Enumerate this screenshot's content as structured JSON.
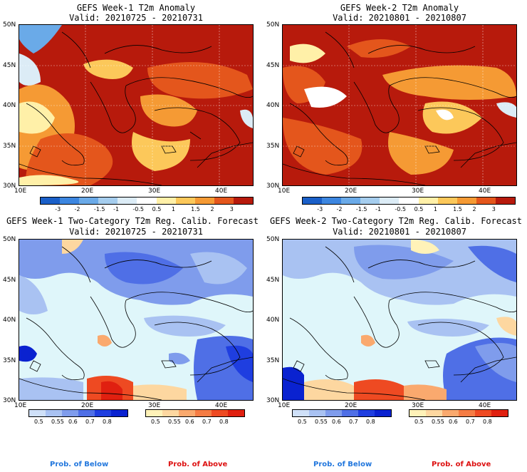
{
  "panels": {
    "tl": {
      "title": "GEFS Week-1 T2m Anomaly",
      "valid": "Valid: 20210725 - 20210731"
    },
    "tr": {
      "title": "GEFS Week-2 T2m Anomaly",
      "valid": "Valid: 20210801 - 20210807"
    },
    "bl": {
      "title": "GEFS Week-1 Two-Category T2m Reg. Calib. Forecast",
      "valid": "Valid: 20210725 - 20210731"
    },
    "br": {
      "title": "GEFS Week-2 Two-Category T2m Reg. Calib. Forecast",
      "valid": "Valid: 20210801 - 20210807"
    }
  },
  "axes": {
    "lat": [
      "50N",
      "45N",
      "40N",
      "35N",
      "30N"
    ],
    "lon": [
      "10E",
      "20E",
      "30E",
      "40E"
    ]
  },
  "anomaly_colorbar": {
    "labels": [
      "-3",
      "-2",
      "-1.5",
      "-1",
      "-0.5",
      "0.5",
      "1",
      "1.5",
      "2",
      "3"
    ],
    "colors": [
      "#1a5fc8",
      "#3c86e0",
      "#6aaae8",
      "#a5cdee",
      "#dcecf6",
      "#ffffff",
      "#fff0a8",
      "#fcc85a",
      "#f59a34",
      "#e4561c",
      "#b71a0c"
    ]
  },
  "prob_colorbar": {
    "below_labels": [
      "0.5",
      "0.55",
      "0.6",
      "0.7",
      "0.8"
    ],
    "above_labels": [
      "0.5",
      "0.55",
      "0.6",
      "0.7",
      "0.8"
    ],
    "below_colors": [
      "#cfe0f8",
      "#a9c2f2",
      "#7f9cec",
      "#4f6fe6",
      "#1f3ee0",
      "#0a22d0"
    ],
    "above_colors": [
      "#fff2b8",
      "#fdd7a0",
      "#faa96e",
      "#f57c44",
      "#ee4a22",
      "#e02010"
    ]
  },
  "notes": {
    "below_left": "Prob. of Below",
    "above_left": "Prob. of Above",
    "below_right": "Prob. of Below",
    "above_right": "Prob. of Above"
  },
  "styles": {
    "below_color": "#2277dd",
    "above_color": "#dd1111",
    "sea_near_normal": "#dff6fa"
  }
}
